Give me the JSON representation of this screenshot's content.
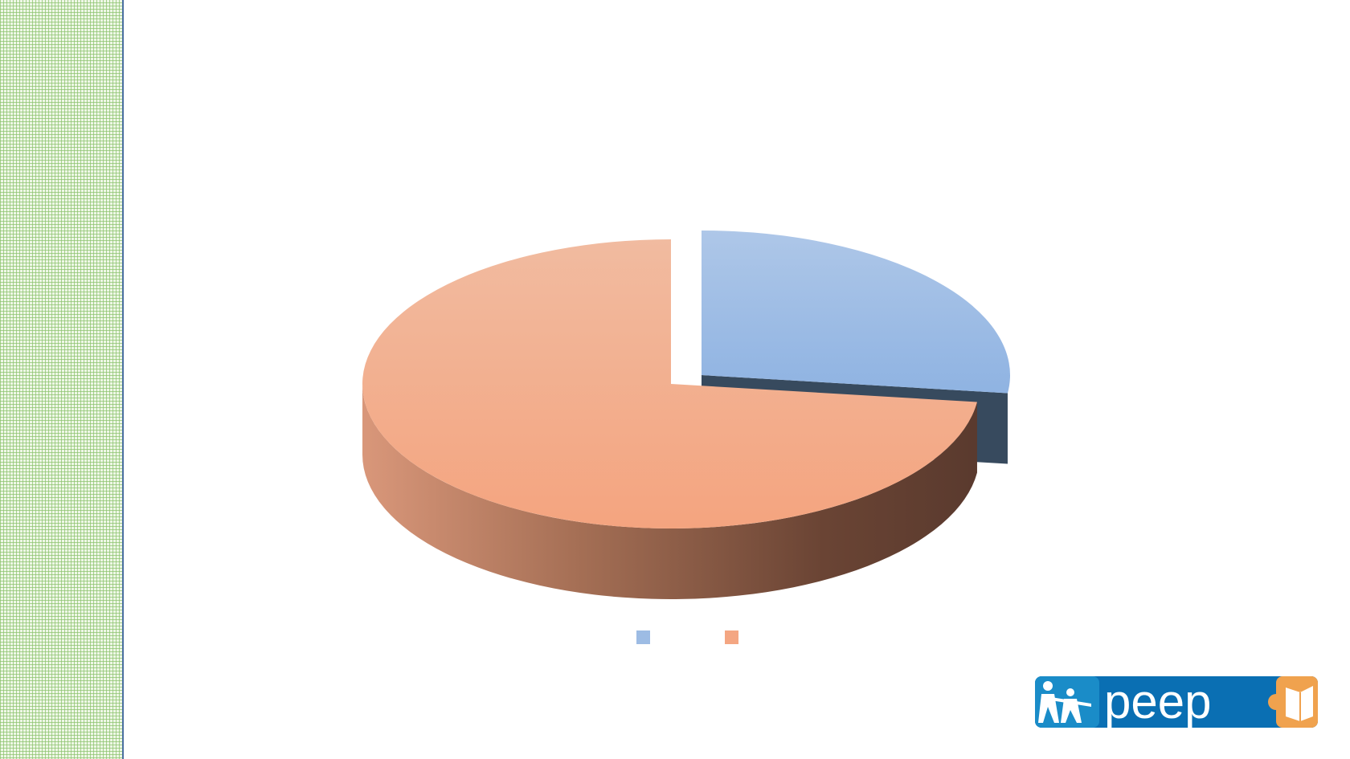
{
  "chart_data": {
    "type": "pie",
    "style": "3d-exploded",
    "title": "",
    "slices": [
      {
        "name": "",
        "value": 0.27,
        "color": "#9dbce4",
        "exploded": true
      },
      {
        "name": "",
        "value": 0.73,
        "color": "#f2a886",
        "exploded": false
      }
    ],
    "legend": "bottom"
  },
  "logo": {
    "text": "peep",
    "colors": {
      "blue": "#0a6fb3",
      "orange": "#f0a24e"
    }
  },
  "colors": {
    "strip_grid": "#8cc36e",
    "strip_border": "#4a6fa0"
  }
}
